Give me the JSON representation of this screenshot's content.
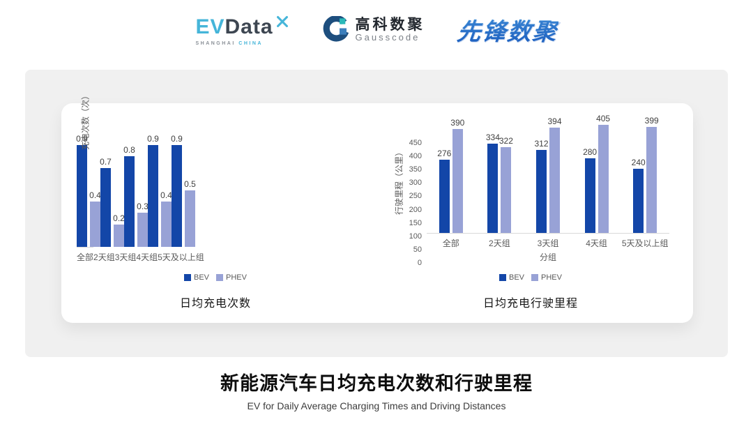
{
  "header": {
    "evdata": {
      "ev": "EV",
      "data": "Data",
      "sub_shanghai": "SHANGHAI",
      "sub_china": "CHINA"
    },
    "gausscode": {
      "cn": "高科数聚",
      "en": "Gausscode"
    },
    "xianfeng": {
      "text": "先锋数聚"
    }
  },
  "footer": {
    "title": "新能源汽车日均充电次数和行驶里程",
    "subtitle": "EV for Daily Average Charging Times and Driving Distances"
  },
  "colors": {
    "bev": "#1346a8",
    "phev": "#98a2d6",
    "panel_bg": "#f0f0f0",
    "axis_text": "#595959",
    "value_text": "#404040",
    "evdata_cyan": "#45b5d9",
    "evdata_slate": "#3d4651",
    "gauss_navy": "#1d4e7e",
    "xianfeng_blue": "#2f78cc"
  },
  "chart_data": [
    {
      "type": "bar",
      "title": "日均充电次数",
      "ylabel": "充电次数（次）",
      "xlabel": "",
      "categories": [
        "全部",
        "2天组",
        "3天组",
        "4天组",
        "5天及以上组"
      ],
      "series": [
        {
          "name": "BEV",
          "color": "#1346a8",
          "values": [
            0.9,
            0.7,
            0.8,
            0.9,
            0.9
          ]
        },
        {
          "name": "PHEV",
          "color": "#98a2d6",
          "values": [
            0.4,
            0.2,
            0.3,
            0.4,
            0.5
          ]
        }
      ],
      "ylim": [
        0,
        1
      ],
      "yticks": [],
      "grid": false,
      "legend_position": "bottom",
      "value_labels": true
    },
    {
      "type": "bar",
      "title": "日均充电行驶里程",
      "ylabel": "行驶里程（公里）",
      "xlabel": "分组",
      "categories": [
        "全部",
        "2天组",
        "3天组",
        "4天组",
        "5天及以上组"
      ],
      "series": [
        {
          "name": "BEV",
          "color": "#1346a8",
          "values": [
            276,
            334,
            312,
            280,
            240
          ]
        },
        {
          "name": "PHEV",
          "color": "#98a2d6",
          "values": [
            390,
            322,
            394,
            405,
            399
          ]
        }
      ],
      "ylim": [
        0,
        450
      ],
      "yticks": [
        0,
        50,
        100,
        150,
        200,
        250,
        300,
        350,
        400,
        450
      ],
      "grid": false,
      "legend_position": "bottom",
      "value_labels": true
    }
  ]
}
